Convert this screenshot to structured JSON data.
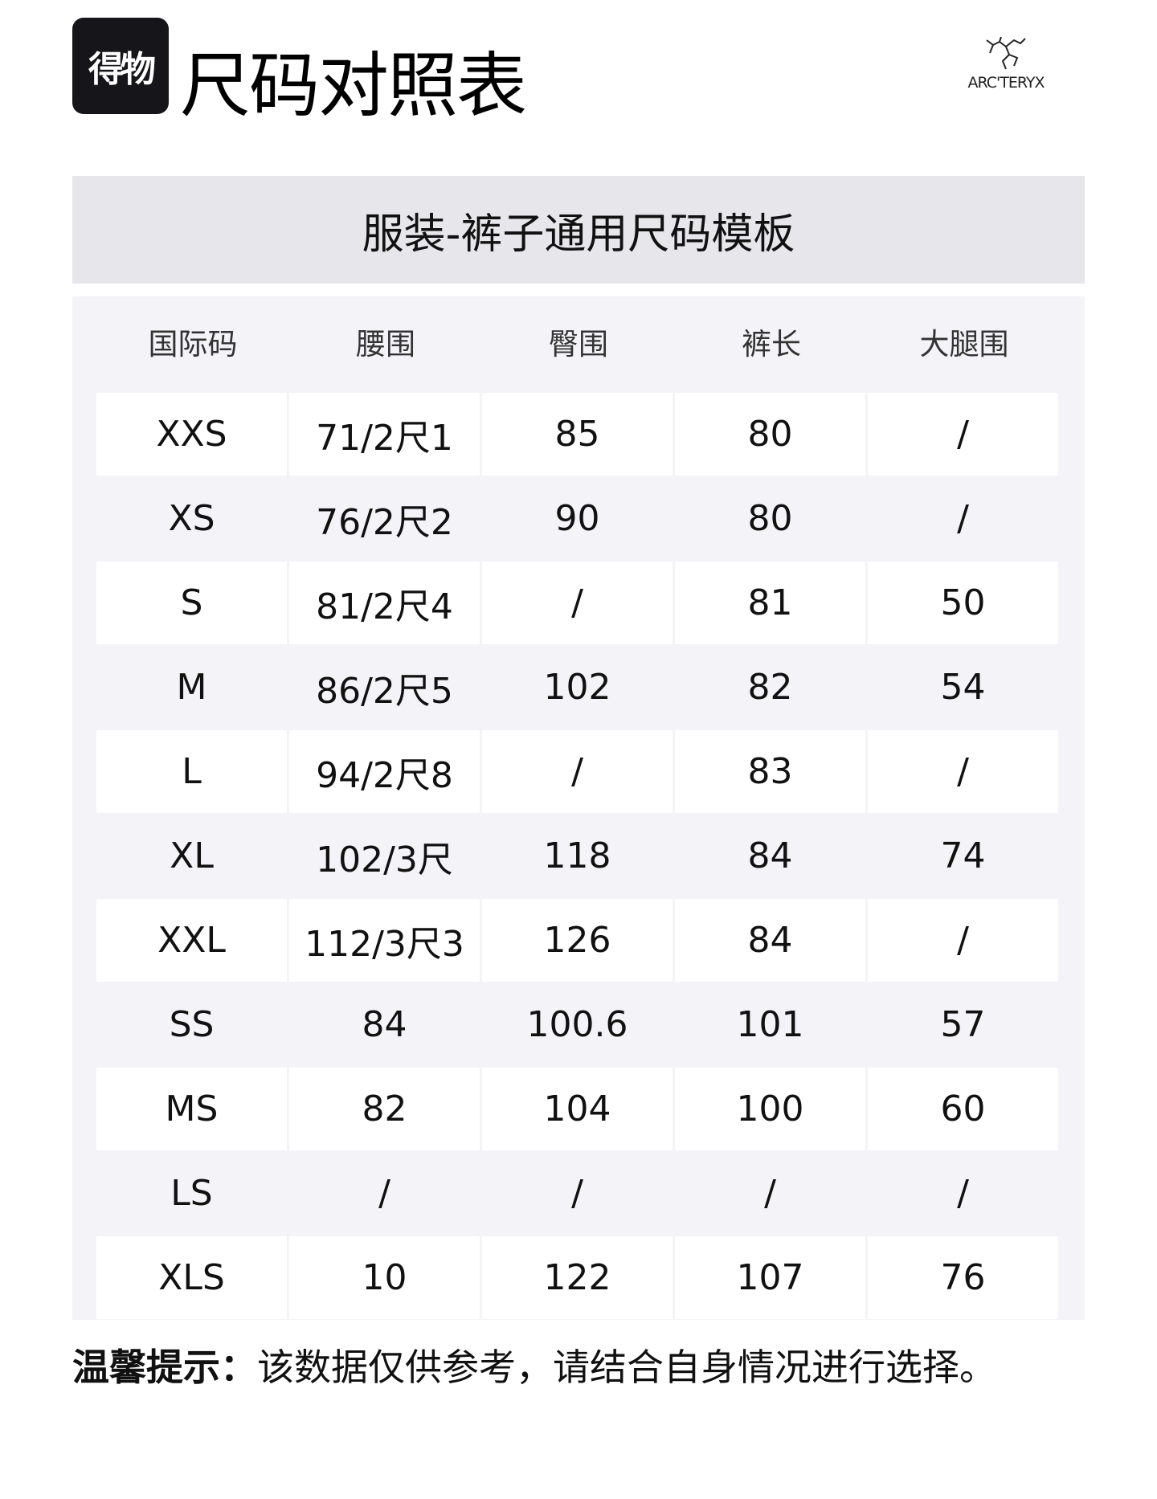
{
  "app_logo": "得物",
  "page_title": "尺码对照表",
  "brand": "ARC'TERYX",
  "template_title": "服装-裤子通用尺码模板",
  "table": {
    "headers": [
      "国际码",
      "腰围",
      "臀围",
      "裤长",
      "大腿围"
    ],
    "rows": [
      [
        "XXS",
        "71/2尺1",
        "85",
        "80",
        "/"
      ],
      [
        "XS",
        "76/2尺2",
        "90",
        "80",
        "/"
      ],
      [
        "S",
        "81/2尺4",
        "/",
        "81",
        "50"
      ],
      [
        "M",
        "86/2尺5",
        "102",
        "82",
        "54"
      ],
      [
        "L",
        "94/2尺8",
        "/",
        "83",
        "/"
      ],
      [
        "XL",
        "102/3尺",
        "118",
        "84",
        "74"
      ],
      [
        "XXL",
        "112/3尺3",
        "126",
        "84",
        "/"
      ],
      [
        "SS",
        "84",
        "100.6",
        "101",
        "57"
      ],
      [
        "MS",
        "82",
        "104",
        "100",
        "60"
      ],
      [
        "LS",
        "/",
        "/",
        "/",
        "/"
      ],
      [
        "XLS",
        "10",
        "122",
        "107",
        "76"
      ]
    ]
  },
  "note": {
    "label": "温馨提示：",
    "text": "该数据仅供参考，请结合自身情况进行选择。"
  }
}
